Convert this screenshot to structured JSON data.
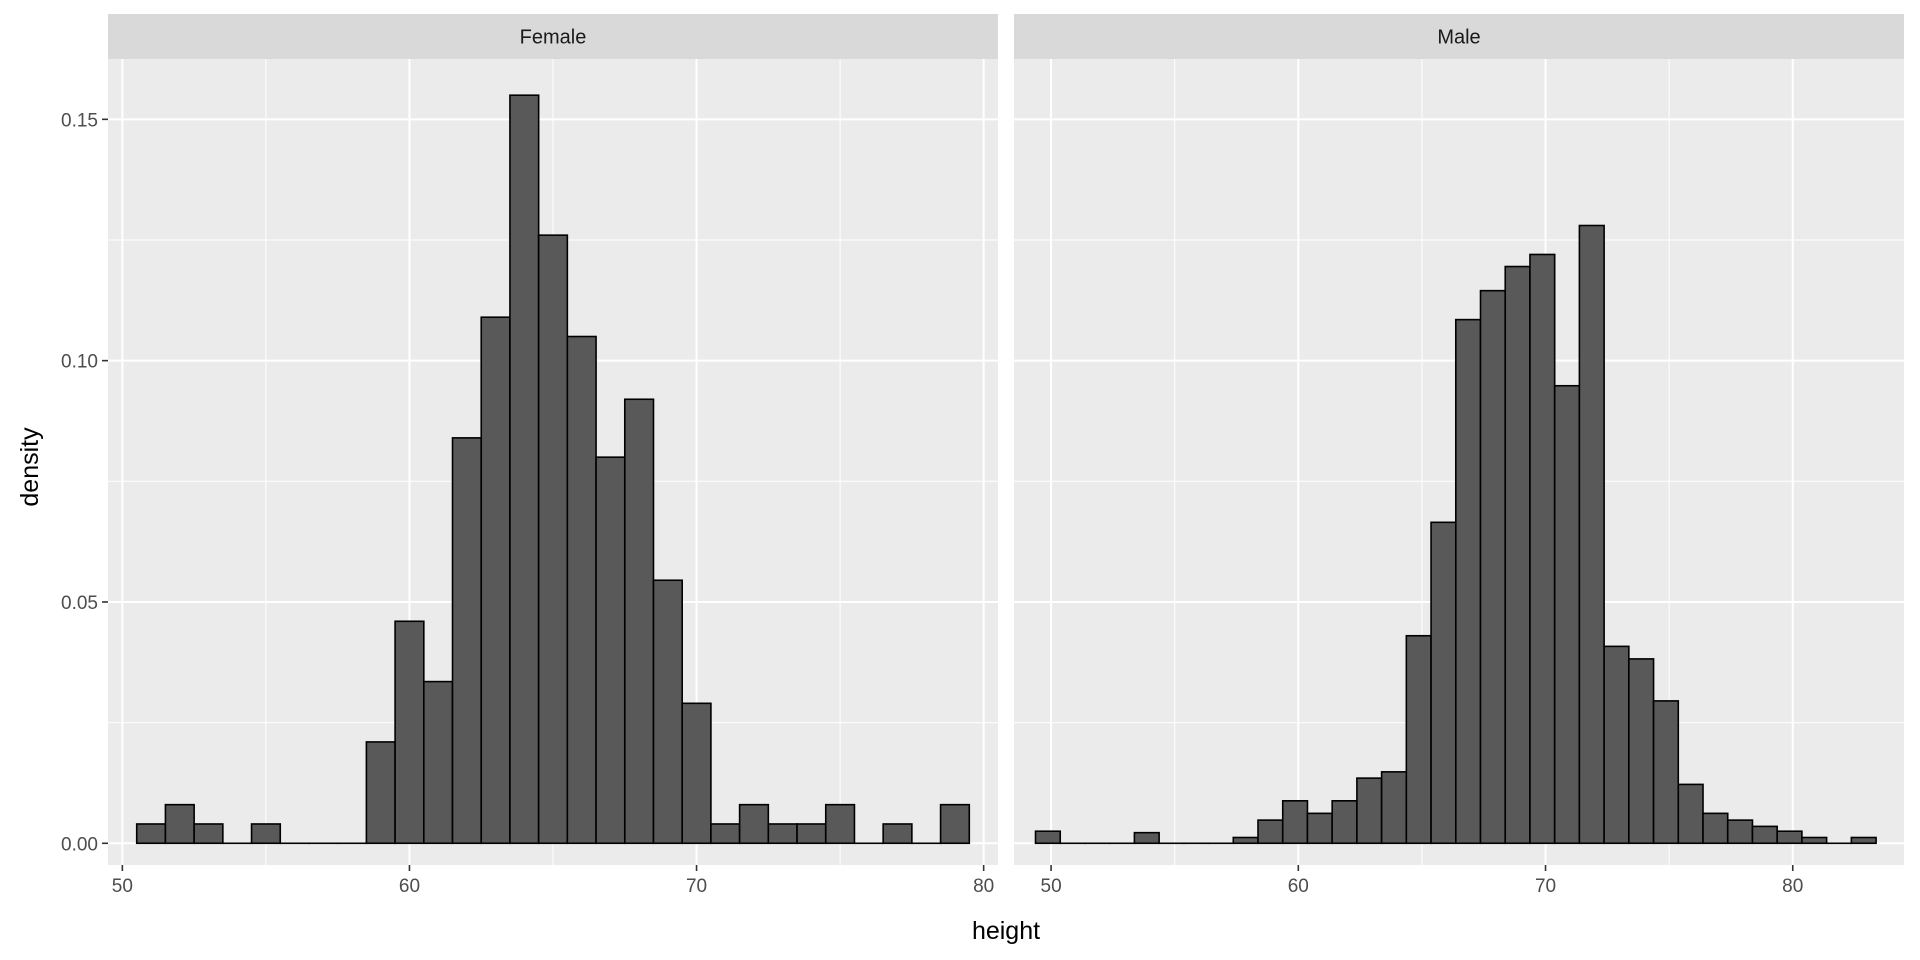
{
  "chart_data": {
    "type": "bar",
    "chart_kind": "faceted histogram",
    "xlabel": "height",
    "ylabel": "density",
    "ylim": [
      -0.0045,
      0.1625
    ],
    "y_ticks": [
      0.0,
      0.05,
      0.1,
      0.15
    ],
    "y_tick_labels": [
      "0.00",
      "0.05",
      "0.10",
      "0.15"
    ],
    "grid": true,
    "fill_color": "#595959",
    "outline_color": "#000000",
    "panel_background": "#ebebeb",
    "strip_background": "#d9d9d9",
    "grid_color": "#ffffff",
    "panels": [
      {
        "label": "Female",
        "xlim": [
          49.5,
          80.5
        ],
        "x_ticks": [
          50,
          60,
          70,
          80
        ],
        "x_tick_labels": [
          "50",
          "60",
          "70",
          "80"
        ],
        "bin_start": 50.5,
        "bin_width": 1.0,
        "values": [
          0.004,
          0.008,
          0.004,
          0.0,
          0.004,
          0.0,
          0.0,
          0.0,
          0.021,
          0.046,
          0.0335,
          0.084,
          0.109,
          0.155,
          0.126,
          0.105,
          0.08,
          0.092,
          0.0545,
          0.029,
          0.004,
          0.008,
          0.004,
          0.004,
          0.008,
          0.0,
          0.004,
          0.0,
          0.008
        ]
      },
      {
        "label": "Male",
        "xlim": [
          48.5,
          84.5
        ],
        "x_ticks": [
          50,
          60,
          70,
          80
        ],
        "x_tick_labels": [
          "50",
          "60",
          "70",
          "80"
        ],
        "bin_start": 49.37,
        "bin_width": 1.0,
        "values": [
          0.0025,
          0.0,
          0.0,
          0.0,
          0.0022,
          0.0,
          0.0,
          0.0,
          0.0012,
          0.0048,
          0.0088,
          0.0062,
          0.0088,
          0.0135,
          0.0148,
          0.043,
          0.0665,
          0.1085,
          0.1145,
          0.1195,
          0.122,
          0.0948,
          0.128,
          0.0408,
          0.0382,
          0.0295,
          0.0122,
          0.0062,
          0.0048,
          0.0035,
          0.0025,
          0.0012,
          0.0,
          0.0012
        ]
      }
    ]
  }
}
